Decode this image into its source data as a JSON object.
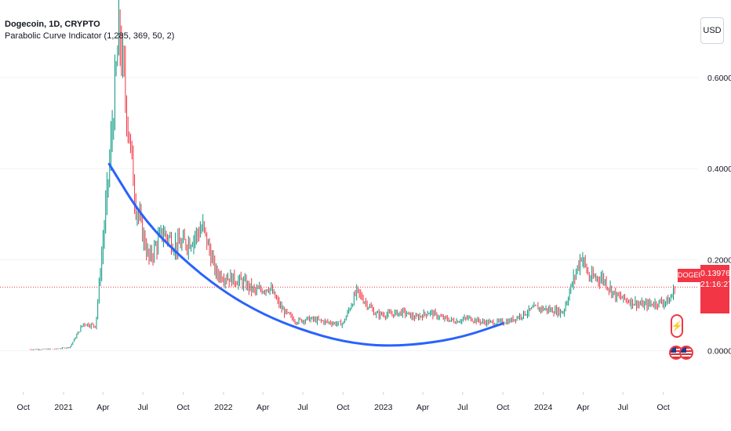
{
  "legend": {
    "title": "Dogecoin, 1D, CRYPTO",
    "indicator": "Parabolic Curve Indicator (1,285, 369, 50, 2)"
  },
  "currency": "USD",
  "price_tag": {
    "symbol": "DOGEUSD",
    "price": "0.13976",
    "countdown": "21:16:27"
  },
  "icons": {
    "bolt": "lightning-bolt-icon",
    "flag": "us-flag-icon"
  },
  "colors": {
    "up_candle": "#089981",
    "down_candle": "#f23645",
    "curve": "#2962ff",
    "price_line": "#f23645",
    "grid": "#f0f3fa"
  },
  "chart_data": {
    "type": "line",
    "title": "Dogecoin, 1D, CRYPTO",
    "xlabel": "",
    "ylabel": "",
    "x_ticks": [
      "Oct",
      "2021",
      "Apr",
      "Jul",
      "Oct",
      "2022",
      "Apr",
      "Jul",
      "Oct",
      "2023",
      "Apr",
      "Jul",
      "Oct",
      "2024",
      "Apr",
      "Jul",
      "Oct"
    ],
    "y_ticks": [
      "0.00000",
      "0.20000",
      "0.40000",
      "0.60000"
    ],
    "ylim": [
      -0.09,
      0.77
    ],
    "grid": true,
    "series": [
      {
        "name": "DOGEUSD",
        "x": [
          "2020-10",
          "2020-12",
          "2021-01",
          "2021-02",
          "2021-03",
          "2021-04-15",
          "2021-05-08",
          "2021-06",
          "2021-07",
          "2021-08",
          "2021-09",
          "2021-10",
          "2021-11",
          "2021-12",
          "2022-01",
          "2022-02",
          "2022-03",
          "2022-04",
          "2022-05",
          "2022-06",
          "2022-07",
          "2022-08",
          "2022-09",
          "2022-10-01",
          "2022-11-01",
          "2022-12",
          "2023-01",
          "2023-02",
          "2023-03",
          "2023-04",
          "2023-05",
          "2023-06",
          "2023-07",
          "2023-08",
          "2023-09",
          "2023-10",
          "2023-11",
          "2023-12",
          "2024-01",
          "2024-02",
          "2024-03-28",
          "2024-04",
          "2024-05",
          "2024-06",
          "2024-07",
          "2024-08",
          "2024-09",
          "2024-10",
          "2024-10-28"
        ],
        "values": [
          0.003,
          0.004,
          0.008,
          0.06,
          0.055,
          0.4,
          0.7,
          0.32,
          0.2,
          0.26,
          0.23,
          0.24,
          0.27,
          0.17,
          0.16,
          0.15,
          0.13,
          0.14,
          0.09,
          0.065,
          0.07,
          0.065,
          0.06,
          0.06,
          0.13,
          0.08,
          0.08,
          0.085,
          0.072,
          0.085,
          0.072,
          0.065,
          0.072,
          0.063,
          0.062,
          0.065,
          0.08,
          0.095,
          0.09,
          0.085,
          0.21,
          0.16,
          0.16,
          0.12,
          0.11,
          0.1,
          0.105,
          0.11,
          0.13976
        ]
      },
      {
        "name": "Parabolic Curve Indicator",
        "x": [
          "2021-04-15",
          "2021-07",
          "2021-10",
          "2022-01",
          "2022-04",
          "2022-07",
          "2022-10",
          "2023-01",
          "2023-04",
          "2023-07",
          "2023-10"
        ],
        "values": [
          0.41,
          0.29,
          0.2,
          0.13,
          0.08,
          0.045,
          0.02,
          0.01,
          0.015,
          0.03,
          0.06
        ]
      }
    ]
  }
}
